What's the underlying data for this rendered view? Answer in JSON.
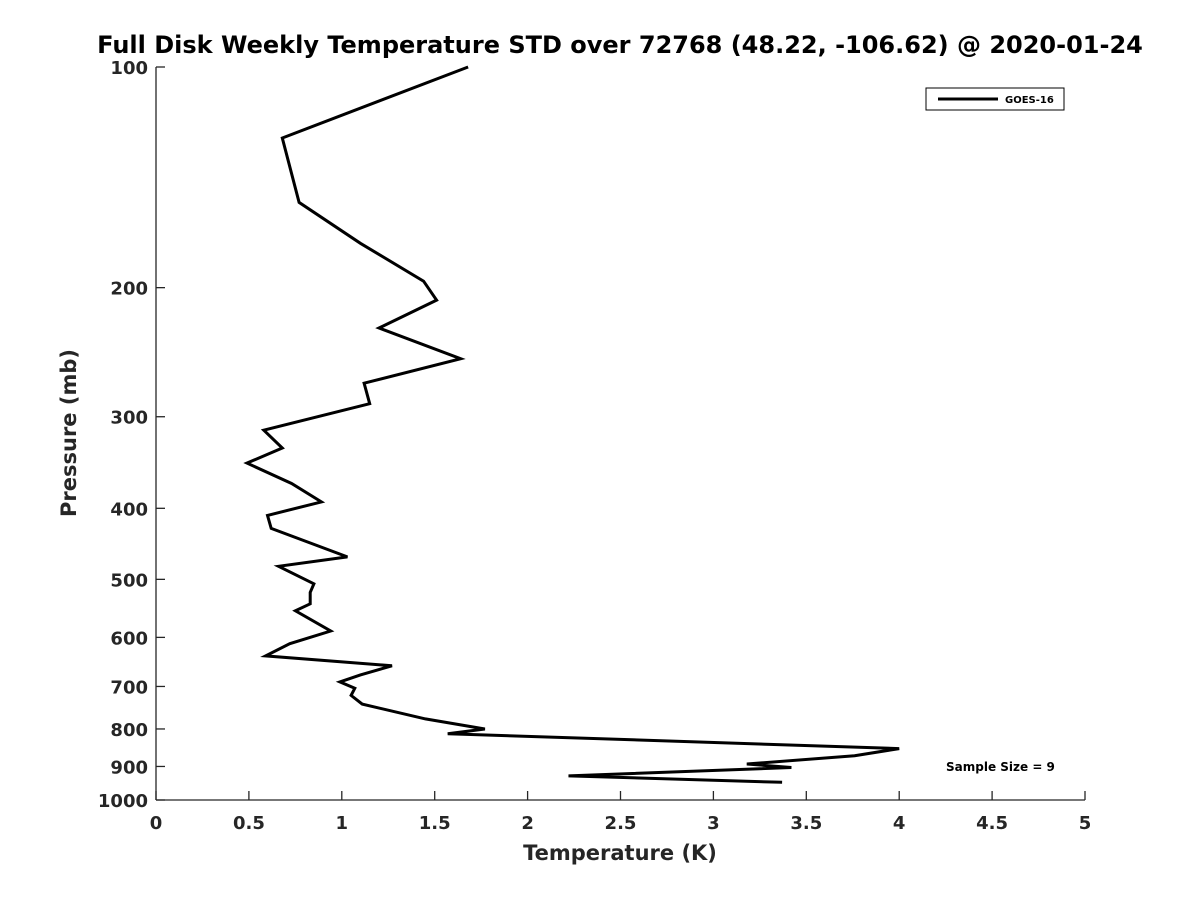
{
  "chart_data": {
    "type": "line",
    "title": "Full Disk Weekly Temperature STD over 72768 (48.22, -106.62) @ 2020-01-24",
    "xlabel": "Temperature (K)",
    "ylabel": "Pressure (mb)",
    "xlim": [
      0,
      5
    ],
    "ylim": [
      100,
      1000
    ],
    "y_scale": "log",
    "y_reversed": true,
    "x_ticks": [
      "0",
      "0.5",
      "1",
      "1.5",
      "2",
      "2.5",
      "3",
      "3.5",
      "4",
      "4.5",
      "5"
    ],
    "y_ticks": [
      "100",
      "200",
      "300",
      "400",
      "500",
      "600",
      "700",
      "800",
      "900",
      "1000"
    ],
    "grid": false,
    "legend_position": "top-right",
    "colors": {
      "line": "#000000",
      "axes": "#262626"
    },
    "series": [
      {
        "name": "GOES-16",
        "points": [
          [
            1.68,
            100
          ],
          [
            0.68,
            125
          ],
          [
            0.77,
            153
          ],
          [
            1.1,
            174
          ],
          [
            1.44,
            196
          ],
          [
            1.51,
            208
          ],
          [
            1.2,
            227
          ],
          [
            1.64,
            250
          ],
          [
            1.12,
            270
          ],
          [
            1.15,
            288
          ],
          [
            0.58,
            313
          ],
          [
            0.68,
            331
          ],
          [
            0.49,
            347
          ],
          [
            0.73,
            370
          ],
          [
            0.89,
            392
          ],
          [
            0.6,
            409
          ],
          [
            0.62,
            426
          ],
          [
            1.03,
            466
          ],
          [
            0.66,
            480
          ],
          [
            0.85,
            507
          ],
          [
            0.83,
            521
          ],
          [
            0.83,
            540
          ],
          [
            0.75,
            552
          ],
          [
            0.94,
            588
          ],
          [
            0.72,
            612
          ],
          [
            0.59,
            636
          ],
          [
            1.27,
            656
          ],
          [
            1.1,
            675
          ],
          [
            0.99,
            690
          ],
          [
            1.07,
            704
          ],
          [
            1.05,
            720
          ],
          [
            1.11,
            740
          ],
          [
            1.45,
            775
          ],
          [
            1.77,
            800
          ],
          [
            1.57,
            812
          ],
          [
            4.0,
            851
          ],
          [
            3.76,
            870
          ],
          [
            3.18,
            893
          ],
          [
            3.42,
            903
          ],
          [
            2.22,
            927
          ],
          [
            3.37,
            946
          ]
        ]
      }
    ],
    "annotations": [
      "Sample Size = 9"
    ]
  }
}
